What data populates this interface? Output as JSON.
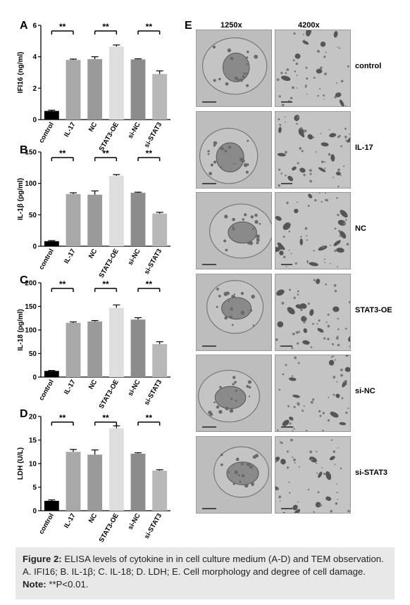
{
  "panels": {
    "A": "A",
    "B": "B",
    "C": "C",
    "D": "D",
    "E": "E"
  },
  "chart_data": [
    {
      "type": "bar",
      "panel": "A",
      "categories": [
        "control",
        "IL-17",
        "NC",
        "STAT3-OE",
        "si-NC",
        "si-STAT3"
      ],
      "values": [
        0.55,
        3.8,
        3.85,
        4.65,
        3.83,
        2.9
      ],
      "errors": [
        0.05,
        0.05,
        0.15,
        0.1,
        0.04,
        0.2
      ],
      "ylabel": "IFI16 (ng/ml)",
      "ylim": [
        0,
        6
      ],
      "yticks": [
        "0",
        "2",
        "4",
        "6"
      ],
      "significance": [
        "**",
        "**",
        "**"
      ]
    },
    {
      "type": "bar",
      "panel": "B",
      "categories": [
        "control",
        "IL-17",
        "NC",
        "STAT3-OE",
        "si-NC",
        "si-STAT3"
      ],
      "values": [
        8,
        83,
        82,
        112,
        85,
        52
      ],
      "errors": [
        1,
        2,
        6,
        2,
        1,
        2
      ],
      "ylabel": "IL-1β (pg/ml)",
      "ylim": [
        0,
        150
      ],
      "yticks": [
        "0",
        "50",
        "100",
        "150"
      ],
      "significance": [
        "**",
        "**",
        "**"
      ]
    },
    {
      "type": "bar",
      "panel": "C",
      "categories": [
        "control",
        "IL-17",
        "NC",
        "STAT3-OE",
        "si-NC",
        "si-STAT3"
      ],
      "values": [
        13,
        115,
        118,
        147,
        122,
        70
      ],
      "errors": [
        1,
        2,
        2,
        6,
        4,
        5
      ],
      "ylabel": "IL-18 (pg/ml)",
      "ylim": [
        0,
        200
      ],
      "yticks": [
        "0",
        "50",
        "100",
        "150",
        "200"
      ],
      "significance": [
        "**",
        "**",
        "**"
      ]
    },
    {
      "type": "bar",
      "panel": "D",
      "categories": [
        "control",
        "IL-17",
        "NC",
        "STAT3-OE",
        "si-NC",
        "si-STAT3"
      ],
      "values": [
        2.1,
        12.5,
        11.9,
        17.5,
        12.1,
        8.5
      ],
      "errors": [
        0.2,
        0.5,
        1.0,
        0.5,
        0.2,
        0.2
      ],
      "ylabel": "LDH (U/L)",
      "ylim": [
        0,
        20
      ],
      "yticks": [
        "0",
        "5",
        "10",
        "15",
        "20"
      ],
      "significance": [
        "**",
        "**",
        "**"
      ]
    }
  ],
  "colors": {
    "bars": [
      "#000000",
      "#a8a8a8",
      "#9a9a9a",
      "#dedede",
      "#8c8c8c",
      "#b8b8b8"
    ],
    "tem_cytoplasm": "#c4c4c4",
    "tem_nucleus": "#8a8a8a"
  },
  "tem": {
    "col_headers": [
      "1250x",
      "4200x"
    ],
    "row_labels": [
      "control",
      "IL-17",
      "NC",
      "STAT3-OE",
      "si-NC",
      "si-STAT3"
    ]
  },
  "caption": {
    "label": "Figure 2:",
    "text": " ELISA levels of cytokine in in cell culture medium (A-D) and TEM observation. A. IFI16; B. IL-1β; C. IL-18; D. LDH; E. Cell morphology and degree of cell damage. ",
    "note_label": "Note:",
    "note_text": " **P<0.01."
  }
}
